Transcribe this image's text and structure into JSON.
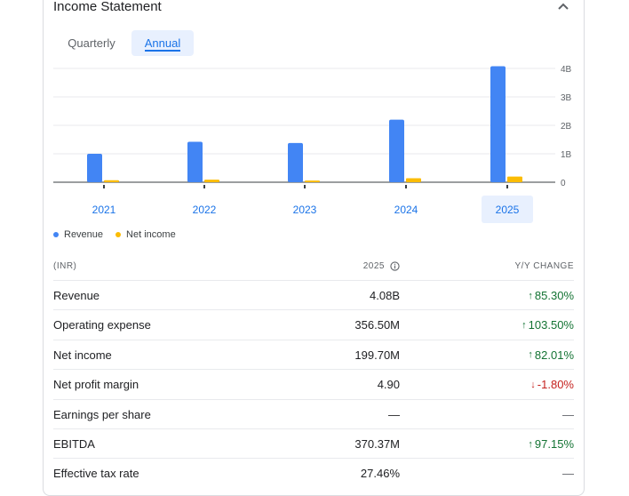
{
  "header": {
    "title": "Income Statement"
  },
  "tabs": [
    {
      "label": "Quarterly",
      "selected": false
    },
    {
      "label": "Annual",
      "selected": true
    }
  ],
  "colors": {
    "revenue": "#4285f4",
    "net_income": "#fbbc04",
    "accent": "#1a73e8",
    "up": "#137333",
    "down": "#c5221f"
  },
  "chart_data": {
    "type": "bar",
    "categories": [
      "2021",
      "2022",
      "2023",
      "2024",
      "2025"
    ],
    "series": [
      {
        "name": "Revenue",
        "values": [
          1.0,
          1.42,
          1.38,
          2.2,
          4.08
        ]
      },
      {
        "name": "Net income",
        "values": [
          0.07,
          0.09,
          0.06,
          0.14,
          0.2
        ]
      }
    ],
    "yticks": [
      "4B",
      "3B",
      "2B",
      "1B",
      "0"
    ],
    "ytick_values": [
      4,
      3,
      2,
      1,
      0
    ],
    "ylim": [
      0,
      4
    ],
    "yunit": "B",
    "selected_category": "2025"
  },
  "legend": {
    "revenue": "Revenue",
    "net_income": "Net income"
  },
  "table": {
    "col_label": "(INR)",
    "col_year": "2025",
    "col_change": "Y/Y CHANGE",
    "rows": [
      {
        "label": "Revenue",
        "value": "4.08B",
        "change": "85.30%",
        "dir": "up",
        "arrow": "↑"
      },
      {
        "label": "Operating expense",
        "value": "356.50M",
        "change": "103.50%",
        "dir": "up",
        "arrow": "↑"
      },
      {
        "label": "Net income",
        "value": "199.70M",
        "change": "82.01%",
        "dir": "up",
        "arrow": "↑"
      },
      {
        "label": "Net profit margin",
        "value": "4.90",
        "change": "-1.80%",
        "dir": "down",
        "arrow": "↓"
      },
      {
        "label": "Earnings per share",
        "value": "—",
        "change": "—",
        "dir": "neutral",
        "arrow": ""
      },
      {
        "label": "EBITDA",
        "value": "370.37M",
        "change": "97.15%",
        "dir": "up",
        "arrow": "↑"
      },
      {
        "label": "Effective tax rate",
        "value": "27.46%",
        "change": "—",
        "dir": "neutral",
        "arrow": ""
      }
    ]
  }
}
